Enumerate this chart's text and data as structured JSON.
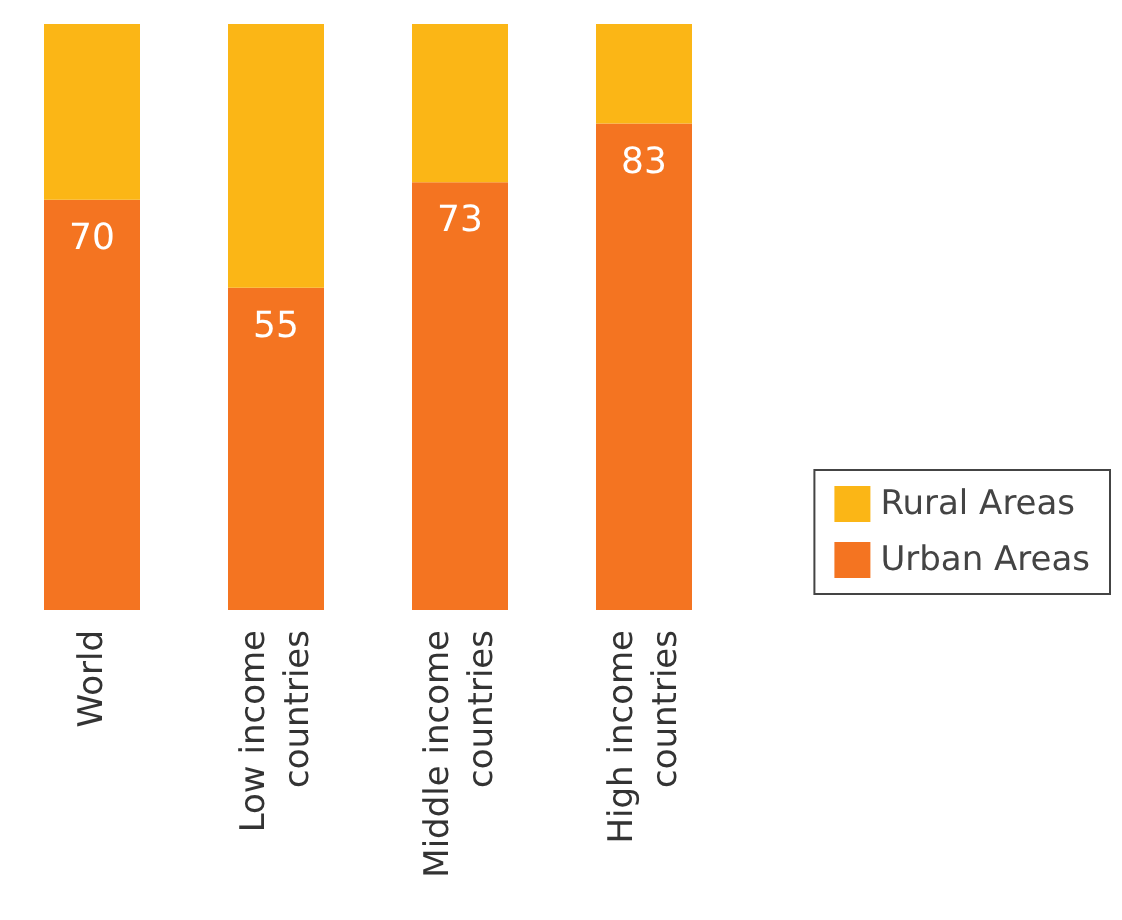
{
  "chart_data": {
    "type": "bar",
    "stacked": true,
    "categories": [
      "World",
      "Low income\ncountries",
      "Middle income\ncountries",
      "High income\ncountries"
    ],
    "series": [
      {
        "name": "Urban Areas",
        "color": "#f47421",
        "values": [
          70,
          55,
          73,
          83
        ],
        "value_labels": [
          "70",
          "55",
          "73",
          "83"
        ]
      },
      {
        "name": "Rural Areas",
        "color": "#fbb616",
        "values": [
          30,
          45,
          27,
          17
        ]
      }
    ],
    "legend": "right"
  }
}
